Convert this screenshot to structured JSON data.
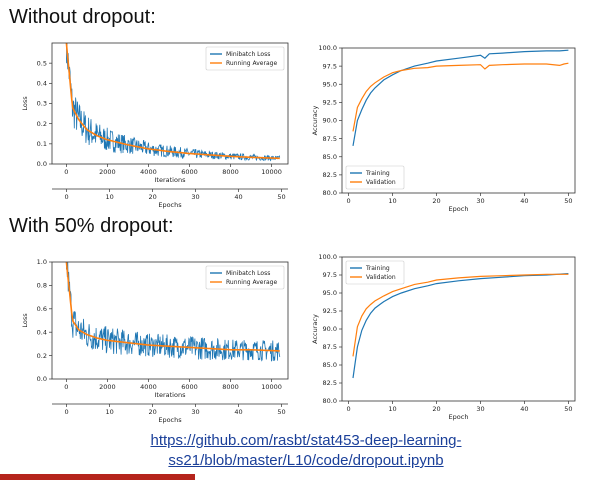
{
  "headings": {
    "no_dropout": "Without dropout:",
    "dropout": "With 50% dropout:"
  },
  "link": {
    "line1": "https://github.com/rasbt/stat453-deep-learning-",
    "line2": "ss21/blob/master/L10/code/dropout.ipynb"
  },
  "colors": {
    "training": "#1f77b4",
    "validation": "#ff7f0e",
    "accent": "#b5241c",
    "link": "#1a3f99"
  },
  "chart_data": [
    {
      "id": "loss_no_dropout",
      "type": "line",
      "xlabel": "Iterations",
      "x2label": "Epochs",
      "ylabel": "Loss",
      "xlim": [
        -700,
        10800
      ],
      "ylim": [
        0,
        0.6
      ],
      "xticks": [
        0,
        2000,
        4000,
        6000,
        8000,
        10000
      ],
      "yticks": [
        0.0,
        0.1,
        0.2,
        0.3,
        0.4,
        0.5
      ],
      "ytick_labels": [
        "0.0",
        "0.1",
        "0.2",
        "0.3",
        "0.4",
        "0.5"
      ],
      "x2ticks": [
        0,
        10,
        20,
        30,
        40,
        50
      ],
      "x2lim": [
        0,
        50
      ],
      "x2_axis_range": [
        -3.4,
        51.5
      ],
      "legend": "top-right",
      "series": [
        {
          "name": "Minibatch Loss",
          "type": "noisy",
          "x": [
            0,
            300,
            600,
            1000,
            1500,
            2000,
            3000,
            4000,
            5000,
            6000,
            7000,
            8000,
            9000,
            10400
          ],
          "y": [
            0.6,
            0.28,
            0.22,
            0.17,
            0.14,
            0.12,
            0.095,
            0.075,
            0.062,
            0.052,
            0.045,
            0.038,
            0.033,
            0.028
          ],
          "noise": [
            0.1,
            0.1,
            0.09,
            0.08,
            0.07,
            0.06,
            0.045,
            0.035,
            0.03,
            0.025,
            0.02,
            0.017,
            0.015,
            0.012
          ]
        },
        {
          "name": "Running Average",
          "x": [
            0,
            300,
            600,
            1000,
            1500,
            2000,
            3000,
            4000,
            5000,
            6000,
            7000,
            8000,
            9000,
            10400
          ],
          "y": [
            0.6,
            0.28,
            0.22,
            0.17,
            0.14,
            0.12,
            0.095,
            0.075,
            0.062,
            0.052,
            0.045,
            0.038,
            0.033,
            0.028
          ]
        }
      ]
    },
    {
      "id": "acc_no_dropout",
      "type": "line",
      "xlabel": "Epoch",
      "ylabel": "Accuracy",
      "xlim": [
        -1.5,
        51.5
      ],
      "ylim": [
        80,
        100
      ],
      "xticks": [
        0,
        10,
        20,
        30,
        40,
        50
      ],
      "yticks": [
        80,
        82.5,
        85,
        87.5,
        90,
        92.5,
        95,
        97.5,
        100
      ],
      "ytick_labels": [
        "80.0",
        "82.5",
        "85.0",
        "87.5",
        "90.0",
        "92.5",
        "95.0",
        "97.5",
        "100.0"
      ],
      "legend": "bottom-left",
      "series": [
        {
          "name": "Training",
          "x": [
            1,
            2,
            3,
            4,
            5,
            6,
            8,
            10,
            12,
            15,
            18,
            20,
            25,
            30,
            31,
            32,
            35,
            40,
            45,
            48,
            50
          ],
          "y": [
            86.5,
            90.0,
            91.5,
            92.8,
            93.8,
            94.5,
            95.6,
            96.3,
            96.9,
            97.5,
            97.9,
            98.2,
            98.6,
            99.0,
            98.6,
            99.2,
            99.3,
            99.5,
            99.6,
            99.6,
            99.7
          ]
        },
        {
          "name": "Validation",
          "x": [
            1,
            2,
            3,
            4,
            5,
            6,
            8,
            10,
            12,
            15,
            18,
            20,
            25,
            30,
            31,
            32,
            35,
            40,
            45,
            48,
            49,
            50
          ],
          "y": [
            88.5,
            91.8,
            93.0,
            94.0,
            94.7,
            95.2,
            96.0,
            96.6,
            96.9,
            97.2,
            97.3,
            97.5,
            97.6,
            97.7,
            97.1,
            97.6,
            97.7,
            97.8,
            97.8,
            97.6,
            97.8,
            97.9
          ]
        }
      ]
    },
    {
      "id": "loss_dropout",
      "type": "line",
      "xlabel": "Iterations",
      "x2label": "Epochs",
      "ylabel": "Loss",
      "xlim": [
        -700,
        10800
      ],
      "ylim": [
        0,
        1.0
      ],
      "xticks": [
        0,
        2000,
        4000,
        6000,
        8000,
        10000
      ],
      "yticks": [
        0.0,
        0.2,
        0.4,
        0.6,
        0.8,
        1.0
      ],
      "ytick_labels": [
        "0.0",
        "0.2",
        "0.4",
        "0.6",
        "0.8",
        "1.0"
      ],
      "x2ticks": [
        0,
        10,
        20,
        30,
        40,
        50
      ],
      "x2lim": [
        0,
        50
      ],
      "x2_axis_range": [
        -3.4,
        51.5
      ],
      "legend": "top-right",
      "series": [
        {
          "name": "Minibatch Loss",
          "type": "noisy",
          "x": [
            0,
            300,
            600,
            1000,
            1500,
            2000,
            3000,
            4000,
            5000,
            6000,
            7000,
            8000,
            9000,
            10400
          ],
          "y": [
            1.0,
            0.5,
            0.42,
            0.38,
            0.35,
            0.33,
            0.31,
            0.29,
            0.28,
            0.27,
            0.26,
            0.25,
            0.25,
            0.24
          ],
          "noise": [
            0.15,
            0.15,
            0.14,
            0.13,
            0.12,
            0.12,
            0.11,
            0.1,
            0.1,
            0.1,
            0.1,
            0.09,
            0.09,
            0.09
          ]
        },
        {
          "name": "Running Average",
          "x": [
            0,
            300,
            600,
            1000,
            1500,
            2000,
            3000,
            4000,
            5000,
            6000,
            7000,
            8000,
            9000,
            10400
          ],
          "y": [
            1.0,
            0.5,
            0.42,
            0.38,
            0.35,
            0.33,
            0.31,
            0.29,
            0.28,
            0.27,
            0.26,
            0.25,
            0.25,
            0.24
          ]
        }
      ]
    },
    {
      "id": "acc_dropout",
      "type": "line",
      "xlabel": "Epoch",
      "ylabel": "Accuracy",
      "xlim": [
        -1.5,
        51.5
      ],
      "ylim": [
        80,
        100
      ],
      "xticks": [
        0,
        10,
        20,
        30,
        40,
        50
      ],
      "yticks": [
        80,
        82.5,
        85,
        87.5,
        90,
        92.5,
        95,
        97.5,
        100
      ],
      "ytick_labels": [
        "80.0",
        "82.5",
        "85.0",
        "87.5",
        "90.0",
        "92.5",
        "95.0",
        "97.5",
        "100.0"
      ],
      "legend": "top-left",
      "series": [
        {
          "name": "Training",
          "x": [
            1,
            2,
            3,
            4,
            5,
            6,
            8,
            10,
            12,
            15,
            18,
            20,
            25,
            30,
            35,
            40,
            45,
            50
          ],
          "y": [
            83.2,
            87.5,
            89.8,
            91.2,
            92.2,
            92.9,
            93.8,
            94.5,
            95.0,
            95.6,
            96.0,
            96.3,
            96.7,
            97.0,
            97.2,
            97.4,
            97.5,
            97.7
          ]
        },
        {
          "name": "Validation",
          "x": [
            1,
            2,
            3,
            4,
            5,
            6,
            8,
            10,
            12,
            15,
            18,
            20,
            25,
            30,
            35,
            40,
            45,
            50
          ],
          "y": [
            86.2,
            90.3,
            91.8,
            92.8,
            93.4,
            93.9,
            94.6,
            95.2,
            95.6,
            96.2,
            96.5,
            96.8,
            97.1,
            97.3,
            97.4,
            97.5,
            97.6,
            97.6
          ]
        }
      ]
    }
  ]
}
